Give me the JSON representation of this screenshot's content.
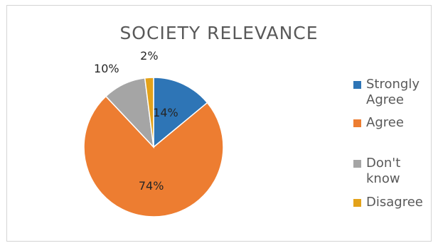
{
  "chart_data": {
    "type": "pie",
    "title": "SOCIETY RELEVANCE",
    "categories": [
      "Strongly Agree",
      "Agree",
      "Don't know",
      "Disagree"
    ],
    "values": [
      14,
      74,
      10,
      2
    ],
    "value_labels": [
      "14%",
      "74%",
      "10%",
      "2%"
    ],
    "colors": [
      "#2e75b6",
      "#ed7d31",
      "#a5a5a5",
      "#e3a21a"
    ],
    "legend_position": "right",
    "grid": false
  }
}
